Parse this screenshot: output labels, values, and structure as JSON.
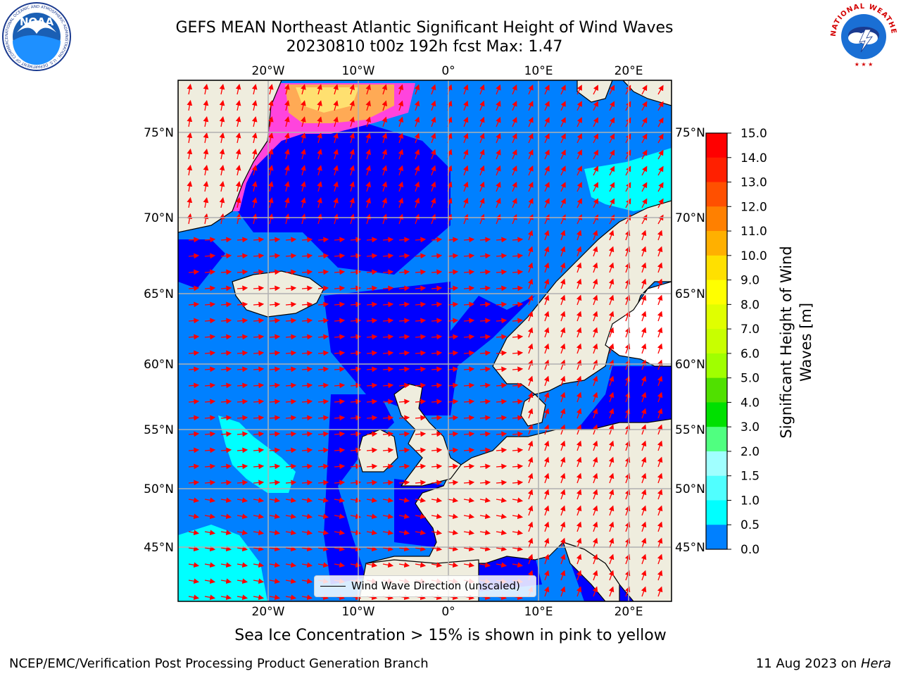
{
  "header": {
    "title_line1": "GEFS MEAN Northeast Atlantic Significant Height of Wind Waves",
    "title_line2": "20230810 t00z 192h fcst   Max: 1.47"
  },
  "logos": {
    "noaa": "NOAA",
    "noaa_ring": "NATIONAL OCEANIC AND ATMOSPHERIC ADMINISTRATION · U.S. DEPARTMENT OF COMMERCE",
    "nws_ring": "NATIONAL WEATHER SERVICE"
  },
  "map": {
    "lon_labels_top": [
      "20°W",
      "10°W",
      "0°",
      "10°E",
      "20°E"
    ],
    "lon_labels_bottom": [
      "20°W",
      "10°W",
      "0°",
      "10°E",
      "20°E"
    ],
    "lat_labels_left": [
      "75°N",
      "70°N",
      "65°N",
      "60°N",
      "55°N",
      "50°N",
      "45°N"
    ],
    "lat_labels_right": [
      "75°N",
      "70°N",
      "65°N",
      "60°N",
      "55°N",
      "50°N",
      "45°N"
    ],
    "legend_label": "Wind Wave Direction (unscaled)",
    "colors": {
      "ocean_low": "#0000ff",
      "ocean_mid": "#0080ff",
      "ocean_high": "#00ffff",
      "land": "#efedde",
      "ice": "#ff44dd",
      "arrow": "#ff0000",
      "grid": "#b0b0b0"
    }
  },
  "colorbar": {
    "label_line1": "Significant Height of Wind",
    "label_line2": "Waves [m]",
    "ticks": [
      "15.0",
      "14.0",
      "13.0",
      "12.0",
      "11.0",
      "10.0",
      "9.0",
      "8.0",
      "7.0",
      "6.0",
      "5.0",
      "4.0",
      "3.0",
      "2.0",
      "1.5",
      "1.0",
      "0.5",
      "0.0"
    ],
    "colors": [
      "#ff0000",
      "#ff2000",
      "#ff5000",
      "#ff8000",
      "#ffb000",
      "#ffe000",
      "#ffff00",
      "#e0ff00",
      "#c8ff00",
      "#a0ff00",
      "#50e000",
      "#00e000",
      "#50ff80",
      "#a0ffff",
      "#50ffff",
      "#00ffff",
      "#0080ff",
      "#0000ff"
    ]
  },
  "caption": "Sea Ice Concentration > 15% is shown in pink to yellow",
  "footer": {
    "left": "NCEP/EMC/Verification Post Processing Product Generation Branch",
    "right_prefix": "11 Aug 2023 on ",
    "right_machine": "Hera"
  }
}
